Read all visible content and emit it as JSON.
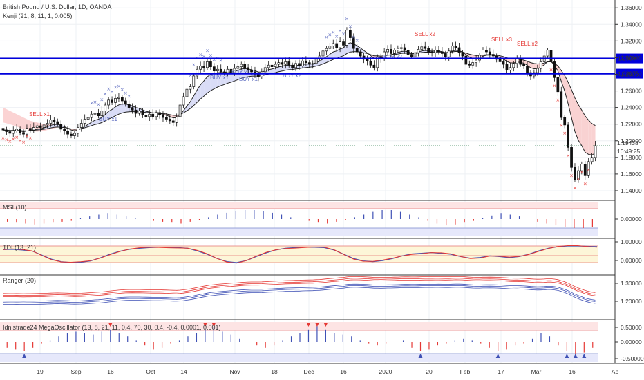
{
  "header": {
    "symbol": "British Pound / U.S. Dollar, 1D, OANDA",
    "indicator": "Kenji (21, 8, 11, 1, 0.005)"
  },
  "price_tag": "1.19438",
  "time_tag": "10:49:25",
  "pane_titles": {
    "msi": "MSI (10)",
    "tdi": "TDI (13, 21)",
    "ranger": "Ranger (20)",
    "mega": "Idnistrade24 MegaOscillator (13, 8, 21, 11, 0.4, 70, 30, 0.4, -0.4, 0.0001, 0.001)"
  },
  "chart_data": {
    "type": "candlestick",
    "x_ticks": [
      "19",
      "Sep",
      "16",
      "Oct",
      "14",
      "Nov",
      "18",
      "Dec",
      "16",
      "2020",
      "20",
      "Feb",
      "17",
      "Mar",
      "16",
      "Ap"
    ],
    "price_ticks": [
      "1.36000",
      "1.34000",
      "1.32000",
      "1.30000",
      "1.28000",
      "1.26000",
      "1.24000",
      "1.22000",
      "1.20000",
      "1.18000",
      "1.16000",
      "1.14000"
    ],
    "price_range": [
      1.13,
      1.366
    ],
    "levels": [
      {
        "value": 1.29904,
        "label": "1.29904",
        "color": "#0000dd"
      },
      {
        "value": 1.28075,
        "label": "1.28075",
        "color": "#0000dd"
      }
    ],
    "closes": [
      1.213,
      1.211,
      1.209,
      1.212,
      1.214,
      1.21,
      1.208,
      1.215,
      1.213,
      1.216,
      1.218,
      1.216,
      1.219,
      1.221,
      1.225,
      1.223,
      1.22,
      1.214,
      1.212,
      1.208,
      1.206,
      1.209,
      1.216,
      1.221,
      1.226,
      1.228,
      1.232,
      1.233,
      1.23,
      1.236,
      1.243,
      1.249,
      1.246,
      1.251,
      1.252,
      1.248,
      1.244,
      1.24,
      1.237,
      1.233,
      1.236,
      1.231,
      1.229,
      1.232,
      1.229,
      1.234,
      1.231,
      1.228,
      1.226,
      1.224,
      1.222,
      1.229,
      1.243,
      1.253,
      1.262,
      1.265,
      1.278,
      1.286,
      1.29,
      1.288,
      1.295,
      1.289,
      1.284,
      1.286,
      1.283,
      1.282,
      1.286,
      1.281,
      1.287,
      1.289,
      1.292,
      1.288,
      1.285,
      1.283,
      1.28,
      1.277,
      1.283,
      1.288,
      1.291,
      1.289,
      1.292,
      1.294,
      1.292,
      1.295,
      1.291,
      1.288,
      1.293,
      1.29,
      1.296,
      1.294,
      1.292,
      1.293,
      1.299,
      1.302,
      1.308,
      1.311,
      1.314,
      1.317,
      1.312,
      1.319,
      1.315,
      1.333,
      1.324,
      1.311,
      1.307,
      1.302,
      1.298,
      1.296,
      1.291,
      1.288,
      1.301,
      1.299,
      1.307,
      1.31,
      1.305,
      1.309,
      1.311,
      1.312,
      1.309,
      1.304,
      1.301,
      1.306,
      1.31,
      1.313,
      1.311,
      1.307,
      1.306,
      1.309,
      1.307,
      1.305,
      1.301,
      1.308,
      1.314,
      1.312,
      1.306,
      1.302,
      1.292,
      1.291,
      1.294,
      1.297,
      1.303,
      1.309,
      1.307,
      1.304,
      1.302,
      1.298,
      1.295,
      1.292,
      1.285,
      1.288,
      1.293,
      1.299,
      1.292,
      1.29,
      1.282,
      1.278,
      1.282,
      1.287,
      1.295,
      1.302,
      1.309,
      1.295,
      1.276,
      1.259,
      1.228,
      1.219,
      1.192,
      1.168,
      1.153,
      1.164,
      1.172,
      1.158,
      1.175,
      1.18,
      1.194
    ],
    "price_bands": {
      "upper": [
        1.24,
        1.236,
        1.232,
        1.228,
        1.224,
        1.222,
        1.22,
        1.22,
        1.22
      ],
      "lower": [
        1.222,
        1.22,
        1.217,
        1.214,
        1.212,
        1.211,
        1.212,
        1.214,
        1.216
      ]
    },
    "signals": [
      {
        "text": "SELL x1",
        "color": "#e53935"
      },
      {
        "text": "BUY x1",
        "color": "#5c6bc0"
      },
      {
        "text": "BUY x1",
        "color": "#5c6bc0"
      },
      {
        "text": "BUY x1",
        "color": "#5c6bc0"
      },
      {
        "text": "BUY x1",
        "color": "#5c6bc0"
      },
      {
        "text": "BUY x2",
        "color": "#5c6bc0"
      },
      {
        "text": "BUY x2",
        "color": "#5c6bc0"
      },
      {
        "text": "SELL x2",
        "color": "#e53935"
      },
      {
        "text": "SELL x3",
        "color": "#e53935"
      },
      {
        "text": "SELL x2",
        "color": "#e53935"
      }
    ],
    "msi": {
      "ticks": [
        "0.00000"
      ],
      "values": [
        -0.3,
        -0.4,
        -0.5,
        -0.6,
        -0.5,
        -0.4,
        -0.3,
        -0.2,
        0.1,
        0.3,
        0.5,
        0.6,
        0.5,
        0.3,
        0.1,
        0.0,
        -0.2,
        -0.3,
        -0.4,
        -0.5,
        -0.3,
        -0.1,
        0.2,
        0.5,
        0.7,
        0.9,
        1.0,
        1.0,
        0.9,
        0.7,
        0.5,
        0.2,
        0.0,
        -0.2,
        -0.4,
        -0.5,
        -0.3,
        -0.1,
        0.2,
        0.5,
        0.8,
        1.0,
        1.0,
        0.8,
        0.5,
        0.2,
        -0.2,
        -0.5,
        -0.7,
        -0.6,
        -0.4,
        -0.2,
        0.1,
        0.4,
        0.6,
        0.5,
        0.3,
        0.0,
        -0.3,
        -0.5,
        -0.7,
        -0.9,
        -1.0,
        -1.0,
        -0.9
      ]
    },
    "tdi": {
      "ticks": [
        "1.00000",
        "0.00000"
      ],
      "values": [
        0.78,
        0.8,
        0.76,
        0.7,
        0.45,
        0.2,
        0.05,
        0.0,
        0.02,
        0.1,
        0.28,
        0.5,
        0.68,
        0.8,
        0.86,
        0.9,
        0.92,
        0.92,
        0.9,
        0.86,
        0.7,
        0.5,
        0.24,
        0.06,
        0.0,
        0.12,
        0.36,
        0.58,
        0.76,
        0.86,
        0.9,
        0.92,
        0.92,
        0.9,
        0.76,
        0.5,
        0.24,
        0.1,
        0.06,
        0.12,
        0.24,
        0.4,
        0.52,
        0.56,
        0.6,
        0.56,
        0.5,
        0.36,
        0.26,
        0.3,
        0.4,
        0.36,
        0.3,
        0.36,
        0.5,
        0.7,
        0.86,
        0.96,
        1.0,
        1.0,
        0.98,
        0.96
      ]
    },
    "ranger": {
      "ticks": [
        "1.30000",
        "1.20000"
      ]
    },
    "mega": {
      "ticks": [
        "0.50000",
        "0.00000",
        "-0.50000"
      ],
      "values": [
        -0.3,
        -0.4,
        -0.5,
        -0.3,
        -0.1,
        0.1,
        0.3,
        0.5,
        0.6,
        0.5,
        0.4,
        0.6,
        0.7,
        0.5,
        0.3,
        0.1,
        -0.2,
        -0.4,
        -0.3,
        -0.1,
        0.1,
        0.3,
        0.5,
        0.7,
        0.8,
        0.6,
        0.4,
        0.2,
        0.0,
        -0.2,
        -0.3,
        -0.2,
        0.1,
        0.3,
        0.5,
        0.7,
        0.9,
        0.7,
        0.5,
        0.4,
        0.3,
        0.1,
        -0.1,
        -0.2,
        -0.1,
        0.0,
        0.1,
        -0.3,
        -0.5,
        -0.4,
        -0.2,
        -0.1,
        0.1,
        0.2,
        0.1,
        -0.1,
        -0.3,
        -0.5,
        -0.4,
        -0.2,
        -0.1,
        0.2,
        0.5,
        0.3,
        -0.2,
        -0.5,
        -0.7,
        -0.6,
        -0.3
      ]
    }
  }
}
